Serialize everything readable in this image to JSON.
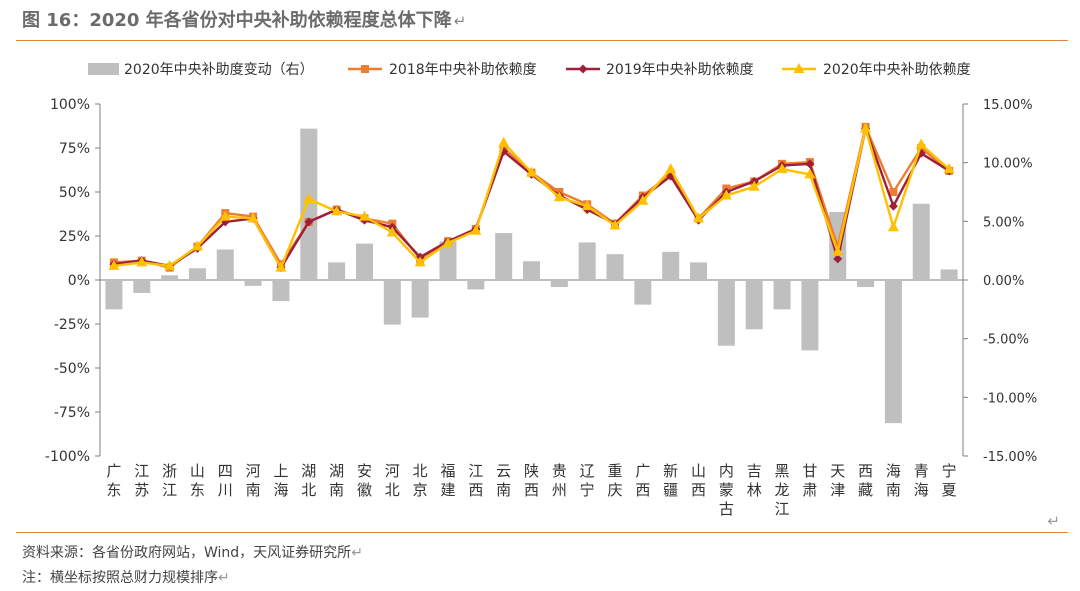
{
  "header": {
    "title": "图 16：2020 年各省份对中央补助依赖程度总体下降",
    "return_mark": "↵"
  },
  "footer": {
    "source": "资料来源：各省份政府网站，Wind，天风证券研究所",
    "note": "注：横坐标按照总财力规模排序",
    "return_mark": "↵"
  },
  "colors": {
    "bar": "#bfbfbf",
    "s2018": "#ed7d31",
    "s2019": "#9e1f3a",
    "s2020": "#ffc000",
    "rule": "#e0883a"
  },
  "chart_data": {
    "type": "bar+line",
    "title": "",
    "legend_position": "top",
    "grid": false,
    "categories": [
      "广东",
      "江苏",
      "浙江",
      "山东",
      "四川",
      "河南",
      "上海",
      "湖北",
      "湖南",
      "安徽",
      "河北",
      "北京",
      "福建",
      "江西",
      "云南",
      "陕西",
      "贵州",
      "辽宁",
      "重庆",
      "广西",
      "新疆",
      "山西",
      "内蒙古",
      "吉林",
      "黑龙江",
      "甘肃",
      "天津",
      "西藏",
      "海南",
      "青海",
      "宁夏"
    ],
    "left_axis": {
      "ylim": [
        -100,
        100
      ],
      "ticks": [
        "100%",
        "75%",
        "50%",
        "25%",
        "0%",
        "-25%",
        "-50%",
        "-75%",
        "-100%"
      ],
      "tick_values": [
        100,
        75,
        50,
        25,
        0,
        -25,
        -50,
        -75,
        -100
      ]
    },
    "right_axis": {
      "ylim": [
        -15,
        15
      ],
      "ticks": [
        "15.00%",
        "10.00%",
        "5.00%",
        "0.00%",
        "-5.00%",
        "-10.00%",
        "-15.00%"
      ],
      "tick_values": [
        15,
        10,
        5,
        0,
        -5,
        -10,
        -15
      ]
    },
    "bar_series": {
      "name": "2020年中央补助度变动（右）",
      "axis": "right",
      "values": [
        -2.5,
        -1.1,
        0.4,
        1.0,
        2.6,
        -0.5,
        -1.8,
        12.9,
        1.5,
        3.1,
        -3.8,
        -3.2,
        3.3,
        -0.8,
        4.0,
        1.6,
        -0.6,
        3.2,
        2.2,
        -2.1,
        2.4,
        1.5,
        -5.6,
        -4.2,
        -2.5,
        -6.0,
        5.8,
        -0.6,
        -12.2,
        6.5,
        0.9
      ]
    },
    "line_series": [
      {
        "name": "2018年中央补助依赖度",
        "axis": "left",
        "marker": "square",
        "values": [
          10,
          11,
          7,
          19,
          38,
          36,
          9,
          33,
          40,
          35,
          32,
          12,
          22,
          29,
          75,
          61,
          50,
          43,
          32,
          48,
          60,
          35,
          52,
          56,
          66,
          67,
          19,
          87,
          50,
          75,
          62
        ]
      },
      {
        "name": "2019年中央补助依赖度",
        "axis": "left",
        "marker": "diamond",
        "values": [
          9,
          11,
          8,
          18,
          33,
          35,
          7,
          33,
          40,
          34,
          30,
          13,
          22,
          29,
          73,
          60,
          48,
          40,
          32,
          47,
          59,
          34,
          50,
          56,
          65,
          66,
          12,
          86,
          42,
          72,
          62
        ]
      },
      {
        "name": "2020年中央补助依赖度",
        "axis": "left",
        "marker": "triangle",
        "values": [
          8,
          10,
          8,
          19,
          36,
          35,
          7,
          46,
          39,
          36,
          27,
          10,
          21,
          28,
          78,
          61,
          47,
          42,
          31,
          45,
          63,
          35,
          48,
          53,
          63,
          60,
          16,
          86,
          30,
          77,
          63
        ]
      }
    ]
  }
}
